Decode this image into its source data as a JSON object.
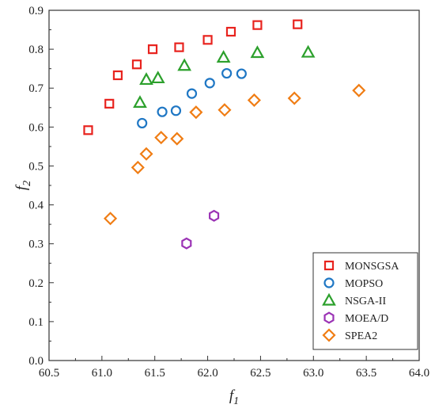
{
  "chart_data": {
    "type": "scatter",
    "xlabel": "f",
    "xlabel_sub": "1",
    "ylabel": "f",
    "ylabel_sub": "2",
    "xlim": [
      60.5,
      64.0
    ],
    "ylim": [
      0.0,
      0.9
    ],
    "xticks": [
      "60.5",
      "61.0",
      "61.5",
      "62.0",
      "62.5",
      "63.0",
      "63.5",
      "64.0"
    ],
    "yticks": [
      "0.0",
      "0.1",
      "0.2",
      "0.3",
      "0.4",
      "0.5",
      "0.6",
      "0.7",
      "0.8",
      "0.9"
    ],
    "grid": false,
    "legend_position": "bottom-right",
    "series": [
      {
        "name": "MONSGSA",
        "marker": "square",
        "color": "#e8231e",
        "points": [
          [
            60.87,
            0.592
          ],
          [
            61.07,
            0.66
          ],
          [
            61.15,
            0.733
          ],
          [
            61.33,
            0.761
          ],
          [
            61.48,
            0.8
          ],
          [
            61.73,
            0.805
          ],
          [
            62.0,
            0.824
          ],
          [
            62.22,
            0.845
          ],
          [
            62.47,
            0.862
          ],
          [
            62.85,
            0.864
          ]
        ]
      },
      {
        "name": "MOPSO",
        "marker": "circle",
        "color": "#1f77c4",
        "points": [
          [
            61.38,
            0.61
          ],
          [
            61.57,
            0.639
          ],
          [
            61.7,
            0.642
          ],
          [
            61.85,
            0.686
          ],
          [
            62.02,
            0.713
          ],
          [
            62.18,
            0.738
          ],
          [
            62.32,
            0.737
          ]
        ]
      },
      {
        "name": "NSGA-II",
        "marker": "triangle",
        "color": "#2ca02c",
        "points": [
          [
            61.36,
            0.663
          ],
          [
            61.42,
            0.722
          ],
          [
            61.53,
            0.726
          ],
          [
            61.78,
            0.758
          ],
          [
            62.15,
            0.779
          ],
          [
            62.47,
            0.791
          ],
          [
            62.95,
            0.792
          ]
        ]
      },
      {
        "name": "MOEA/D",
        "marker": "hexagon",
        "color": "#9b33b5",
        "points": [
          [
            61.8,
            0.301
          ],
          [
            62.06,
            0.372
          ]
        ]
      },
      {
        "name": "SPEA2",
        "marker": "diamond",
        "color": "#f07d14",
        "points": [
          [
            61.08,
            0.365
          ],
          [
            61.34,
            0.496
          ],
          [
            61.42,
            0.531
          ],
          [
            61.56,
            0.573
          ],
          [
            61.71,
            0.57
          ],
          [
            61.89,
            0.638
          ],
          [
            62.16,
            0.644
          ],
          [
            62.44,
            0.669
          ],
          [
            62.82,
            0.674
          ],
          [
            63.43,
            0.694
          ]
        ]
      }
    ]
  }
}
